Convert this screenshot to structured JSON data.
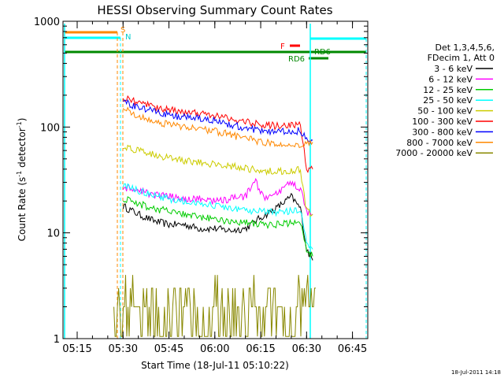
{
  "chart_data": {
    "type": "line",
    "title": "HESSI Observing Summary Count Rates",
    "xlabel": "Start Time (18-Jul-11 05:10:22)",
    "ylabel_main": "Count Rate (s",
    "ylabel_sup1": "-1",
    "ylabel_mid": " detector",
    "ylabel_sup2": "-1",
    "ylabel_end": ")",
    "xlim": [
      "05:10:22",
      "06:50:00"
    ],
    "ylim": [
      1,
      1000
    ],
    "yscale": "log",
    "x_ticks": [
      "05:15",
      "05:30",
      "05:45",
      "06:00",
      "06:15",
      "06:30",
      "06:45"
    ],
    "y_ticks": [
      "1",
      "10",
      "100",
      "1000"
    ],
    "legend_title": [
      "Det 1,3,4,5,6,",
      "FDecim 1, Att 0"
    ],
    "legend_position": "right",
    "timestamp": "18-Jul-2011 14:18",
    "series": [
      {
        "name": "3 - 6 keV",
        "color": "#000000",
        "times": [
          "05:30",
          "05:35",
          "05:40",
          "05:45",
          "05:50",
          "05:55",
          "06:00",
          "06:05",
          "06:10",
          "06:15",
          "06:20",
          "06:25",
          "06:28",
          "06:30",
          "06:32"
        ],
        "values": [
          18,
          15,
          13,
          12,
          12,
          11,
          11,
          10.5,
          11,
          14,
          17,
          22,
          17,
          7,
          5.5
        ]
      },
      {
        "name": "6 - 12 keV",
        "color": "#ff00ff",
        "times": [
          "05:30",
          "05:35",
          "05:40",
          "05:45",
          "05:50",
          "05:55",
          "06:00",
          "06:05",
          "06:10",
          "06:13",
          "06:16",
          "06:20",
          "06:25",
          "06:28",
          "06:30",
          "06:32"
        ],
        "values": [
          27,
          25,
          23,
          22,
          21,
          21,
          20,
          21,
          22,
          32,
          21,
          23,
          30,
          26,
          16,
          15
        ]
      },
      {
        "name": "12 - 25 keV",
        "color": "#00cc00",
        "times": [
          "05:30",
          "05:35",
          "05:40",
          "05:45",
          "05:50",
          "05:55",
          "06:00",
          "06:05",
          "06:10",
          "06:15",
          "06:20",
          "06:25",
          "06:28",
          "06:30",
          "06:32"
        ],
        "values": [
          21,
          19,
          17,
          16,
          15,
          14,
          13.5,
          13,
          12.5,
          12,
          12,
          12.5,
          12,
          7,
          6
        ]
      },
      {
        "name": "25 - 50 keV",
        "color": "#00ffff",
        "times": [
          "05:30",
          "05:35",
          "05:40",
          "05:45",
          "05:50",
          "05:55",
          "06:00",
          "06:05",
          "06:10",
          "06:15",
          "06:20",
          "06:25",
          "06:28",
          "06:30",
          "06:32"
        ],
        "values": [
          28,
          25,
          23,
          21,
          20,
          19,
          18,
          17,
          16,
          16,
          15.5,
          16,
          16,
          8,
          7
        ]
      },
      {
        "name": "50 - 100 keV",
        "color": "#cccc00",
        "times": [
          "05:30",
          "05:35",
          "05:40",
          "05:45",
          "05:50",
          "05:55",
          "06:00",
          "06:05",
          "06:10",
          "06:15",
          "06:20",
          "06:25",
          "06:28",
          "06:30",
          "06:32"
        ],
        "values": [
          64,
          60,
          55,
          51,
          48,
          46,
          45,
          43,
          41,
          39,
          38,
          39,
          40,
          16,
          15
        ]
      },
      {
        "name": "100 - 300 keV",
        "color": "#ff0000",
        "times": [
          "05:30",
          "05:35",
          "05:40",
          "05:45",
          "05:50",
          "05:55",
          "06:00",
          "06:05",
          "06:10",
          "06:15",
          "06:20",
          "06:25",
          "06:28",
          "06:30",
          "06:32"
        ],
        "values": [
          190,
          170,
          155,
          145,
          140,
          135,
          130,
          120,
          112,
          107,
          103,
          103,
          108,
          40,
          40
        ]
      },
      {
        "name": "300 - 800 keV",
        "color": "#0000ff",
        "times": [
          "05:30",
          "05:35",
          "05:40",
          "05:45",
          "05:50",
          "05:55",
          "06:00",
          "06:05",
          "06:10",
          "06:15",
          "06:20",
          "06:25",
          "06:28",
          "06:30",
          "06:32"
        ],
        "values": [
          175,
          155,
          140,
          130,
          124,
          120,
          115,
          106,
          98,
          93,
          90,
          90,
          93,
          75,
          75
        ]
      },
      {
        "name": "800 - 7000 keV",
        "color": "#ff8800",
        "times": [
          "05:30",
          "05:35",
          "05:40",
          "05:45",
          "05:50",
          "05:55",
          "06:00",
          "06:05",
          "06:10",
          "06:15",
          "06:20",
          "06:25",
          "06:28",
          "06:30",
          "06:32"
        ],
        "values": [
          150,
          130,
          115,
          105,
          100,
          96,
          92,
          85,
          78,
          73,
          69,
          67,
          69,
          72,
          72
        ]
      },
      {
        "name": "7000 - 20000 keV",
        "color": "#888800",
        "times": [
          "05:27",
          "05:32",
          "05:37",
          "05:42",
          "05:47",
          "05:52",
          "05:57",
          "06:02",
          "06:07",
          "06:12",
          "06:17",
          "06:22",
          "06:27",
          "06:30",
          "06:33"
        ],
        "values": [
          2,
          2,
          2,
          3,
          3,
          3,
          3,
          3,
          3,
          2,
          2,
          2,
          2,
          3,
          3
        ]
      }
    ],
    "annotations": {
      "saa_label": "S",
      "night_label": "N",
      "flare_label": "F",
      "rd_label_top": "RD6",
      "rd_label_bottom": "RD6"
    },
    "colors": {
      "saa": "#ff8800",
      "night": "#00ffff",
      "flare": "#ff0000",
      "rd": "#008800",
      "axes": "#000000"
    }
  }
}
